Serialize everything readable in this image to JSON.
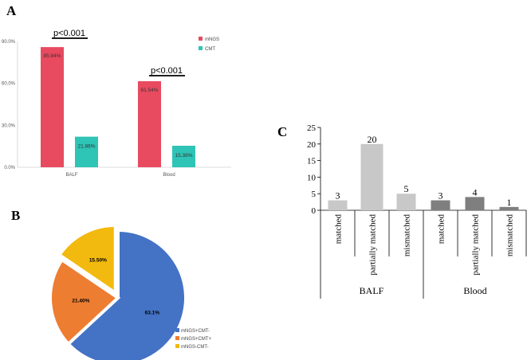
{
  "chart_data": [
    {
      "panel": "A",
      "type": "bar",
      "categories": [
        "BALF",
        "Blood"
      ],
      "series": [
        {
          "name": "mNGS",
          "values": [
            85.94,
            61.54
          ],
          "labels": [
            "85.94%",
            "61.54%"
          ],
          "color": "#e84a5f"
        },
        {
          "name": "CMT",
          "values": [
            21.86,
            15.38
          ],
          "labels": [
            "21.86%",
            "15.38%"
          ],
          "color": "#2ec4b6"
        }
      ],
      "yticks": [
        "0.0%",
        "30.0%",
        "60.0%",
        "90.0%"
      ],
      "ylim": [
        0,
        90
      ],
      "annotations": [
        "p<0.001",
        "p<0.001"
      ]
    },
    {
      "panel": "B",
      "type": "pie",
      "slices": [
        {
          "name": "mNGS+CMT-",
          "value": 63.1,
          "label": "63.1%",
          "color": "#4472c4"
        },
        {
          "name": "mNGS+CMT+",
          "value": 21.4,
          "label": "21.40%",
          "color": "#ed7d31"
        },
        {
          "name": "mNGS-CMT-",
          "value": 15.5,
          "label": "15.50%",
          "color": "#f2b90f"
        }
      ]
    },
    {
      "panel": "C",
      "type": "bar",
      "groups": [
        "BALF",
        "Blood"
      ],
      "categories": [
        "matched",
        "partially matched",
        "mismatched",
        "matched",
        "partially matched",
        "mismatched"
      ],
      "values": [
        3,
        20,
        5,
        3,
        4,
        1
      ],
      "colors": [
        "#c8c8c8",
        "#c8c8c8",
        "#c8c8c8",
        "#7f7f7f",
        "#7f7f7f",
        "#7f7f7f"
      ],
      "yticks": [
        "0",
        "5",
        "10",
        "15",
        "20",
        "25"
      ],
      "ylim": [
        0,
        25
      ]
    }
  ]
}
